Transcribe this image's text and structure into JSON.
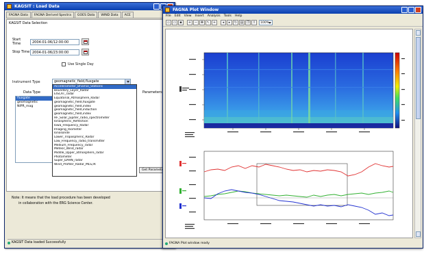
{
  "load_window": {
    "title": "KAGSIT : Load Data",
    "tabs": [
      "FAGNA Data",
      "FAGNA Derived Spectra",
      "GOES Data",
      "WIND Data",
      "ACE"
    ],
    "panel_title": "KAGSIT Data Selection",
    "start_time_label": "Start Time",
    "start_time_value": "2004-01-06/12:00:00",
    "stop_time_label": "Stop Time",
    "stop_time_value": "2004-01-06/23:00:00",
    "use_single_day_label": "Use Single Day",
    "instrument_type_label": "Instrument Type",
    "instrument_type_value": "geomagnetic_field,fluxgate",
    "data_type_label": "Data Type",
    "parameters_label": "Parameters",
    "instrument_options": [
      "Accelerometer_Bhamal_Stations",
      "Boundary_Layer_Radar",
      "EISCAT_radar",
      "Equatorial_Atmosphere_Radar",
      "geomagnetic_field,fluxgate",
      "geomagnetic_field,index",
      "geomagnetic_field,induction",
      "geomagnetic_field,index",
      "HF_Solar_Jupiter_radio_spectrometer",
      "Ionospheric_Reflection",
      "Iowa_Frequency_Radar",
      "Imaging_Riometer",
      "Ionosonde",
      "Lower_Tropospheric_Radar",
      "Low_Frequency_radio_transmitter",
      "Medium_Frequency_radar",
      "Meteor_Wind_radar",
      "Middle_Upper_atmosphere_radar",
      "Photometer",
      "Super_DARN_radar",
      "Wind_Profiler_Radar_MLS,IR"
    ],
    "data_types": [
      "fluxgate",
      "geomagnetic",
      "NIPR_mag"
    ],
    "get_parameter_button": "Get Parameter",
    "note_line_1": "Note: It means that the load procedure has been developed",
    "note_line_2": "in collaboration with the ERG Science Center.",
    "status_text": "KAGSIT Data loaded Successfully"
  },
  "viewer_window": {
    "title": "FAGNA Plot Window",
    "menu": [
      "File",
      "Edit",
      "View",
      "Insert",
      "Analysis",
      "Tools",
      "Help"
    ],
    "zoom_value": "100%",
    "status_text": "FAGNA Plot window ready"
  },
  "colors": {
    "titlebar": "#0a3fae",
    "selection": "#316ac5",
    "red_trace": "#e03030",
    "green_trace": "#30b030",
    "blue_trace": "#2030d0"
  }
}
